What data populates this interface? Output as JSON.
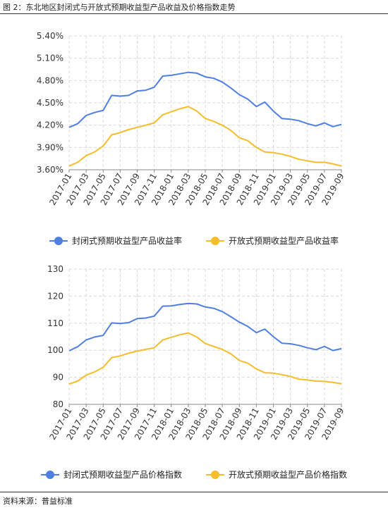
{
  "figure": {
    "title": "图 2：东北地区封闭式与开放式预期收益型产品收益及价格指数走势",
    "source": "资料来源：普益标准"
  },
  "colors": {
    "closed": "#4f7fe0",
    "open": "#f5bd2b",
    "grid": "#d9d9d9",
    "axis": "#888888"
  },
  "chart_data": [
    {
      "type": "line",
      "title": "",
      "xlabel": "",
      "ylabel": "",
      "x": [
        "2017-01",
        "2017-02",
        "2017-03",
        "2017-04",
        "2017-05",
        "2017-06",
        "2017-07",
        "2017-08",
        "2017-09",
        "2017-10",
        "2017-11",
        "2017-12",
        "2018-01",
        "2018-02",
        "2018-03",
        "2018-04",
        "2018-05",
        "2018-06",
        "2018-07",
        "2018-08",
        "2018-09",
        "2018-10",
        "2018-11",
        "2018-12",
        "2019-01",
        "2019-02",
        "2019-03",
        "2019-04",
        "2019-05",
        "2019-06",
        "2019-07",
        "2019-08",
        "2019-09"
      ],
      "x_tick_labels": [
        "2017-01",
        "2017-03",
        "2017-05",
        "2017-07",
        "2017-09",
        "2017-11",
        "2018-01",
        "2018-03",
        "2018-05",
        "2018-07",
        "2018-09",
        "2018-11",
        "2019-01",
        "2019-03",
        "2019-05",
        "2019-07",
        "2019-09"
      ],
      "y_ticks": [
        "3.60%",
        "3.90%",
        "4.20%",
        "4.50%",
        "4.80%",
        "5.10%",
        "5.40%"
      ],
      "ylim": [
        3.6,
        5.4
      ],
      "grid": true,
      "legend_position": "bottom",
      "series": [
        {
          "name": "封闭式预期收益型产品收益率",
          "color_key": "closed",
          "values": [
            4.17,
            4.22,
            4.33,
            4.37,
            4.4,
            4.6,
            4.59,
            4.6,
            4.66,
            4.67,
            4.71,
            4.86,
            4.87,
            4.89,
            4.91,
            4.9,
            4.85,
            4.83,
            4.78,
            4.7,
            4.61,
            4.55,
            4.45,
            4.51,
            4.39,
            4.29,
            4.28,
            4.26,
            4.22,
            4.19,
            4.23,
            4.18,
            4.21
          ]
        },
        {
          "name": "开放式预期收益型产品收益率",
          "color_key": "open",
          "values": [
            3.65,
            3.7,
            3.79,
            3.84,
            3.92,
            4.07,
            4.1,
            4.14,
            4.17,
            4.2,
            4.23,
            4.34,
            4.38,
            4.42,
            4.45,
            4.39,
            4.29,
            4.25,
            4.2,
            4.13,
            4.03,
            3.99,
            3.9,
            3.84,
            3.83,
            3.81,
            3.78,
            3.74,
            3.72,
            3.7,
            3.7,
            3.68,
            3.65
          ]
        }
      ]
    },
    {
      "type": "line",
      "title": "",
      "xlabel": "",
      "ylabel": "",
      "x": [
        "2017-01",
        "2017-02",
        "2017-03",
        "2017-04",
        "2017-05",
        "2017-06",
        "2017-07",
        "2017-08",
        "2017-09",
        "2017-10",
        "2017-11",
        "2017-12",
        "2018-01",
        "2018-02",
        "2018-03",
        "2018-04",
        "2018-05",
        "2018-06",
        "2018-07",
        "2018-08",
        "2018-09",
        "2018-10",
        "2018-11",
        "2018-12",
        "2019-01",
        "2019-02",
        "2019-03",
        "2019-04",
        "2019-05",
        "2019-06",
        "2019-07",
        "2019-08",
        "2019-09"
      ],
      "x_tick_labels": [
        "2017-01",
        "2017-03",
        "2017-05",
        "2017-07",
        "2017-09",
        "2017-11",
        "2018-01",
        "2018-03",
        "2018-05",
        "2018-07",
        "2018-09",
        "2018-11",
        "2019-01",
        "2019-03",
        "2019-05",
        "2019-07",
        "2019-09"
      ],
      "y_ticks": [
        "80",
        "90",
        "100",
        "110",
        "120",
        "130"
      ],
      "ylim": [
        80,
        130
      ],
      "grid": true,
      "legend_position": "bottom",
      "series": [
        {
          "name": "封闭式预期收益型产品价格指数",
          "color_key": "closed",
          "values": [
            99.8,
            101.3,
            103.8,
            104.9,
            105.5,
            110.1,
            109.9,
            110.2,
            111.7,
            111.9,
            112.6,
            116.3,
            116.4,
            116.9,
            117.3,
            117.1,
            116.0,
            115.5,
            114.3,
            112.4,
            110.4,
            108.8,
            106.5,
            107.8,
            105.0,
            102.6,
            102.4,
            101.8,
            100.9,
            100.2,
            101.4,
            99.9,
            100.6
          ]
        },
        {
          "name": "开放式预期收益型产品价格指数",
          "color_key": "open",
          "values": [
            87.5,
            88.6,
            90.8,
            92.0,
            93.7,
            97.3,
            97.9,
            98.9,
            99.7,
            100.3,
            100.9,
            103.8,
            104.8,
            105.7,
            106.4,
            104.9,
            102.5,
            101.4,
            100.3,
            98.7,
            96.2,
            95.2,
            93.1,
            91.7,
            91.5,
            91.0,
            90.3,
            89.3,
            89.0,
            88.6,
            88.5,
            88.1,
            87.6
          ]
        }
      ]
    }
  ]
}
